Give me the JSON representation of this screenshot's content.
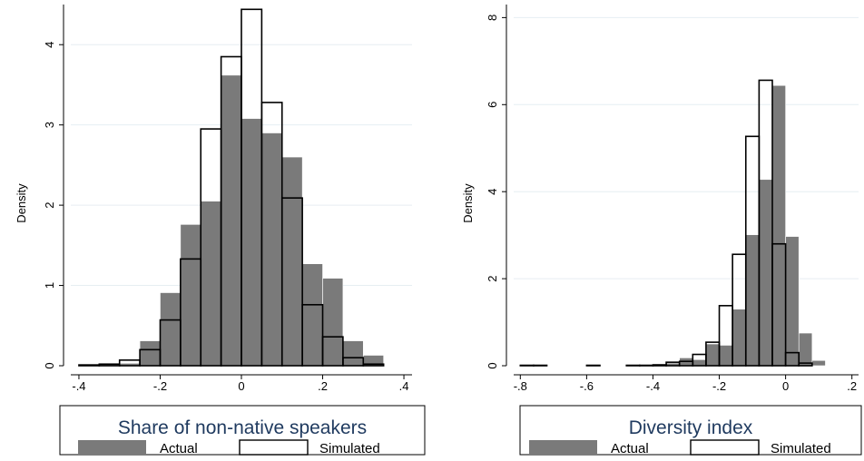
{
  "colors": {
    "actual_fill": "#7a7a7a",
    "simulated_stroke": "#000000",
    "grid": "#e6eef2",
    "legend_title": "#1f3a5f"
  },
  "chart_data": [
    {
      "type": "bar",
      "title": "Share of non-native speakers",
      "xlabel": "",
      "ylabel": "Density",
      "xlim": [
        -0.42,
        0.42
      ],
      "ylim": [
        0,
        4.5
      ],
      "xticks": [
        -0.4,
        -0.2,
        0,
        0.2,
        0.4
      ],
      "xtick_labels": [
        "-.4",
        "-.2",
        "0",
        ".2",
        ".4"
      ],
      "yticks": [
        0,
        1,
        2,
        3,
        4
      ],
      "ytick_labels": [
        "0",
        "1",
        "2",
        "3",
        "4"
      ],
      "grid": true,
      "legend": {
        "title": "Share of non-native speakers",
        "position": "bottom",
        "items": [
          "Actual",
          "Simulated"
        ]
      },
      "series": [
        {
          "name": "Actual",
          "style": "filled",
          "bin_edges": [
            -0.4,
            -0.35,
            -0.3,
            -0.25,
            -0.2,
            -0.15,
            -0.1,
            -0.05,
            0,
            0.05,
            0.1,
            0.15,
            0.2,
            0.25,
            0.3,
            0.35,
            0.4
          ],
          "values": [
            0.02,
            0.02,
            0.03,
            0.31,
            0.91,
            1.76,
            2.05,
            3.62,
            3.08,
            2.9,
            2.6,
            1.27,
            1.09,
            0.31,
            0.13,
            0,
            0
          ]
        },
        {
          "name": "Simulated",
          "style": "outline",
          "bin_edges": [
            -0.4,
            -0.35,
            -0.3,
            -0.25,
            -0.2,
            -0.15,
            -0.1,
            -0.05,
            0,
            0.05,
            0.1,
            0.15,
            0.2,
            0.25,
            0.3,
            0.35,
            0.4
          ],
          "values": [
            0.01,
            0.02,
            0.07,
            0.2,
            0.57,
            1.33,
            2.95,
            3.85,
            4.44,
            3.28,
            2.09,
            0.76,
            0.36,
            0.1,
            0.02,
            0,
            0
          ]
        }
      ]
    },
    {
      "type": "bar",
      "title": "Diversity index",
      "xlabel": "",
      "ylabel": "Density",
      "xlim": [
        -0.82,
        0.22
      ],
      "ylim": [
        0,
        8.3
      ],
      "xticks": [
        -0.8,
        -0.6,
        -0.4,
        -0.2,
        0,
        0.2
      ],
      "xtick_labels": [
        "-.8",
        "-.6",
        "-.4",
        "-.2",
        "0",
        ".2"
      ],
      "yticks": [
        0,
        2,
        4,
        6,
        8
      ],
      "ytick_labels": [
        "0",
        "2",
        "4",
        "6",
        "8"
      ],
      "grid": true,
      "legend": {
        "title": "Diversity index",
        "position": "bottom",
        "items": [
          "Actual",
          "Simulated"
        ]
      },
      "series": [
        {
          "name": "Actual",
          "style": "filled",
          "bin_edges": [
            -0.8,
            -0.76,
            -0.72,
            -0.68,
            -0.64,
            -0.6,
            -0.56,
            -0.52,
            -0.48,
            -0.44,
            -0.4,
            -0.36,
            -0.32,
            -0.28,
            -0.24,
            -0.2,
            -0.16,
            -0.12,
            -0.08,
            -0.04,
            0,
            0.04,
            0.08,
            0.12,
            0.16,
            0.2
          ],
          "values": [
            0.02,
            0.02,
            0,
            0,
            0,
            0.02,
            0,
            0,
            0.02,
            0.02,
            0.04,
            0.06,
            0.18,
            0.14,
            0.5,
            0.47,
            1.3,
            3.01,
            4.28,
            6.44,
            2.97,
            0.75,
            0.12,
            0,
            0
          ]
        },
        {
          "name": "Simulated",
          "style": "outline",
          "bin_edges": [
            -0.8,
            -0.76,
            -0.72,
            -0.68,
            -0.64,
            -0.6,
            -0.56,
            -0.52,
            -0.48,
            -0.44,
            -0.4,
            -0.36,
            -0.32,
            -0.28,
            -0.24,
            -0.2,
            -0.16,
            -0.12,
            -0.08,
            -0.04,
            0,
            0.04,
            0.08,
            0.12,
            0.16,
            0.2
          ],
          "values": [
            0.01,
            0.01,
            0,
            0,
            0,
            0.01,
            0,
            0,
            0.01,
            0.01,
            0.02,
            0.08,
            0.1,
            0.26,
            0.54,
            1.38,
            2.56,
            5.27,
            6.56,
            2.8,
            0.3,
            0.06,
            0,
            0,
            0
          ]
        }
      ]
    }
  ]
}
